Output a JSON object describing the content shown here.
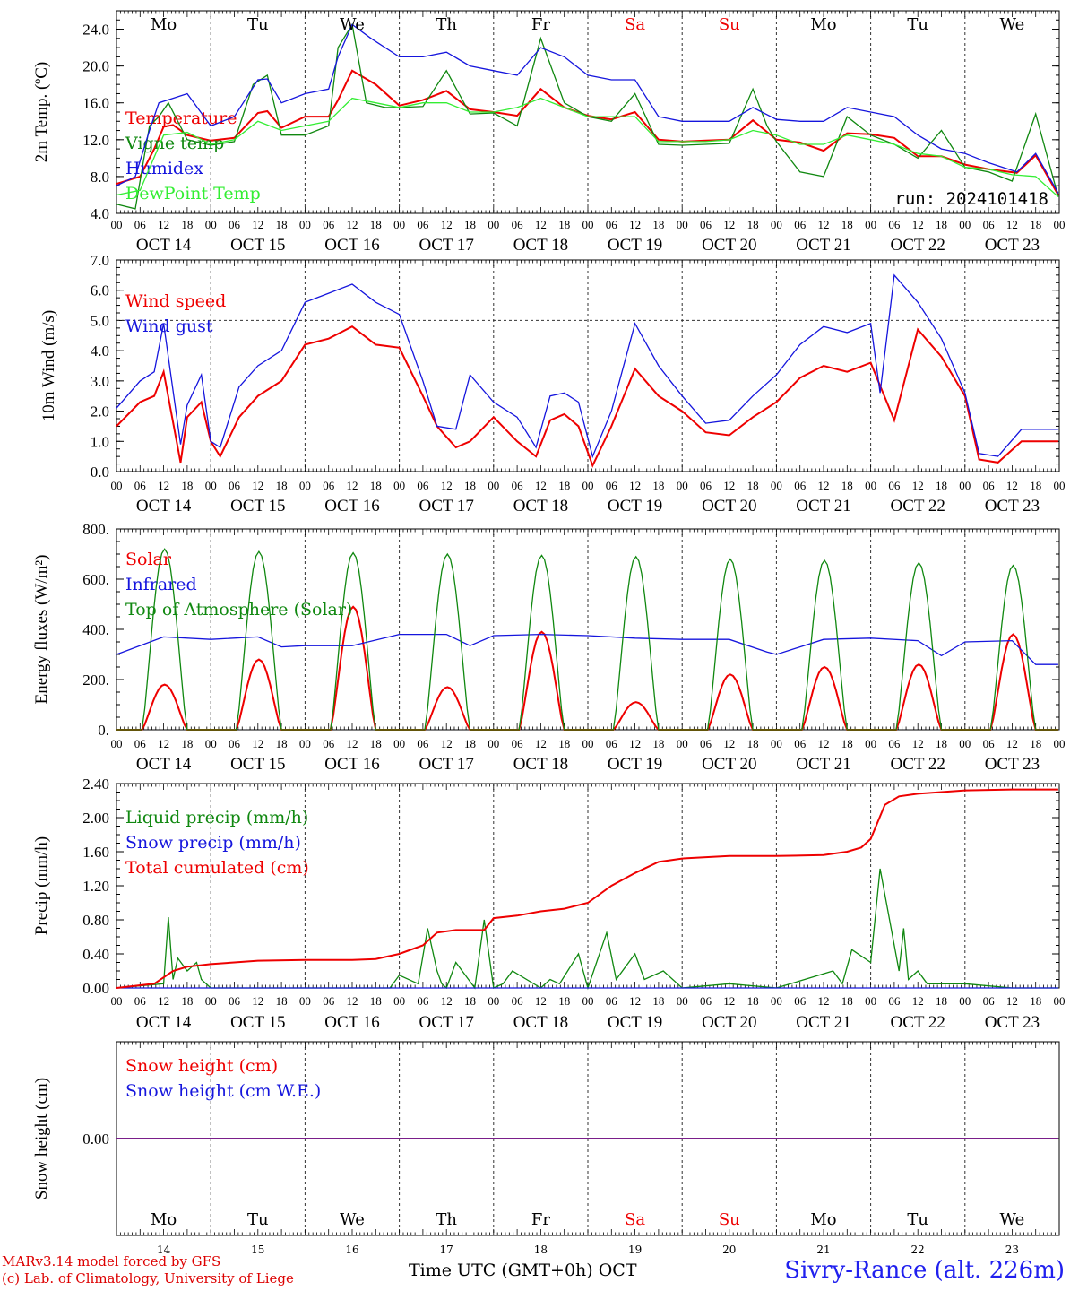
{
  "run_label": "run: 2024101418",
  "x_axis": {
    "hour_ticks": [
      "00",
      "06",
      "12",
      "18"
    ],
    "date_labels": [
      "OCT 14",
      "OCT 15",
      "OCT 16",
      "OCT 17",
      "OCT 18",
      "OCT 19",
      "OCT 20",
      "OCT 21",
      "OCT 22",
      "OCT 23"
    ],
    "weekday_labels": [
      "Mo",
      "Tu",
      "We",
      "Th",
      "Fr",
      "Sa",
      "Su",
      "Mo",
      "Tu",
      "We"
    ],
    "weekend_flags": [
      false,
      false,
      false,
      false,
      false,
      true,
      true,
      false,
      false,
      false
    ],
    "day_numbers": [
      "14",
      "15",
      "16",
      "17",
      "18",
      "19",
      "20",
      "21",
      "22",
      "23"
    ],
    "final_tick": "00",
    "range_days": [
      0,
      10
    ]
  },
  "colors": {
    "red": "#ee0000",
    "green": "#108810",
    "blue": "#1515dd",
    "lightgreen": "#33ee33",
    "purple": "#7a1f8a"
  },
  "chart_data": [
    {
      "id": "temp",
      "type": "line",
      "ylabel": "2m Temp. (ºC)",
      "ylim": [
        4.0,
        26.0
      ],
      "yticks": [
        "4.0",
        "8.0",
        "12.0",
        "16.0",
        "20.0",
        "24.0"
      ],
      "ytick_values": [
        4,
        8,
        12,
        16,
        20,
        24
      ],
      "x_unit": "days since OCT 14 00 UTC",
      "series": [
        {
          "name": "Temperature",
          "color": "red",
          "x": [
            0,
            0.25,
            0.4,
            0.5,
            0.6,
            0.75,
            1.0,
            1.25,
            1.5,
            1.6,
            1.75,
            2.0,
            2.25,
            2.35,
            2.5,
            2.75,
            3.0,
            3.25,
            3.5,
            3.75,
            4.0,
            4.25,
            4.5,
            4.75,
            5.0,
            5.25,
            5.5,
            5.75,
            6.0,
            6.25,
            6.5,
            6.75,
            7.0,
            7.25,
            7.5,
            7.75,
            8.0,
            8.25,
            8.5,
            8.75,
            9.0,
            9.25,
            9.55,
            9.75,
            9.99
          ],
          "y": [
            7.2,
            8.0,
            11.0,
            13.4,
            13.6,
            12.5,
            11.9,
            12.2,
            14.9,
            15.1,
            13.3,
            14.5,
            14.5,
            16.3,
            19.5,
            18.0,
            15.7,
            16.3,
            17.3,
            15.3,
            15.0,
            14.6,
            17.5,
            15.5,
            14.6,
            14.2,
            15.0,
            12.0,
            11.8,
            11.9,
            12.0,
            14.1,
            12.0,
            11.7,
            10.8,
            12.7,
            12.6,
            12.2,
            10.2,
            10.2,
            9.3,
            8.8,
            8.4,
            10.3,
            6.0
          ]
        },
        {
          "name": "Vigne temp",
          "color": "green",
          "x": [
            0,
            0.2,
            0.35,
            0.45,
            0.55,
            0.75,
            1.0,
            1.25,
            1.45,
            1.6,
            1.75,
            2.0,
            2.25,
            2.35,
            2.5,
            2.65,
            2.85,
            3.0,
            3.25,
            3.5,
            3.75,
            4.0,
            4.25,
            4.5,
            4.75,
            5.0,
            5.25,
            5.5,
            5.75,
            6.0,
            6.25,
            6.5,
            6.75,
            6.9,
            7.0,
            7.25,
            7.5,
            7.75,
            8.0,
            8.25,
            8.5,
            8.75,
            9.0,
            9.25,
            9.5,
            9.75,
            9.99
          ],
          "y": [
            5.0,
            4.5,
            13.5,
            14.5,
            16.0,
            12.0,
            11.4,
            11.8,
            18.0,
            19.0,
            12.5,
            12.5,
            13.5,
            22.0,
            24.5,
            16.0,
            15.5,
            15.5,
            15.6,
            19.5,
            14.8,
            14.9,
            13.5,
            23.0,
            16.0,
            14.5,
            14.0,
            17.0,
            11.5,
            11.4,
            11.5,
            11.6,
            17.5,
            13.5,
            11.8,
            8.5,
            8.0,
            14.5,
            12.5,
            11.5,
            10.0,
            13.0,
            9.0,
            8.5,
            7.5,
            14.8,
            5.8
          ]
        },
        {
          "name": "Humidex",
          "color": "blue",
          "x": [
            0,
            0.2,
            0.35,
            0.45,
            0.6,
            0.75,
            1.0,
            1.25,
            1.5,
            1.6,
            1.75,
            2.0,
            2.25,
            2.35,
            2.5,
            2.7,
            3.0,
            3.25,
            3.5,
            3.75,
            4.0,
            4.25,
            4.5,
            4.75,
            5.0,
            5.25,
            5.5,
            5.75,
            6.0,
            6.25,
            6.5,
            6.75,
            7.0,
            7.25,
            7.5,
            7.75,
            8.0,
            8.25,
            8.5,
            8.75,
            9.0,
            9.25,
            9.55,
            9.75,
            9.99
          ],
          "y": [
            7.0,
            8.0,
            13.0,
            16.0,
            16.5,
            17.0,
            13.5,
            14.5,
            18.5,
            18.6,
            16.0,
            17.0,
            17.5,
            21.0,
            24.5,
            23.0,
            21.0,
            21.0,
            21.5,
            20.0,
            19.5,
            19.0,
            22.0,
            21.0,
            19.0,
            18.5,
            18.5,
            14.5,
            14.0,
            14.0,
            14.0,
            15.5,
            14.2,
            14.0,
            14.0,
            15.5,
            15.0,
            14.5,
            12.5,
            11.0,
            10.5,
            9.5,
            8.5,
            10.5,
            6.2
          ]
        },
        {
          "name": "DewPoint Temp",
          "color": "lightgreen",
          "x": [
            0,
            0.25,
            0.5,
            0.75,
            1.0,
            1.25,
            1.5,
            1.75,
            2.0,
            2.25,
            2.5,
            2.75,
            3.0,
            3.25,
            3.5,
            3.75,
            4.0,
            4.25,
            4.5,
            4.75,
            5.0,
            5.25,
            5.5,
            5.75,
            6.0,
            6.25,
            6.5,
            6.75,
            7.0,
            7.25,
            7.5,
            7.75,
            8.0,
            8.25,
            8.5,
            8.75,
            9.0,
            9.25,
            9.5,
            9.75,
            9.99
          ],
          "y": [
            6.0,
            6.5,
            12.5,
            12.8,
            11.5,
            12.0,
            14.0,
            13.0,
            13.5,
            14.0,
            16.5,
            16.0,
            15.5,
            16.0,
            16.0,
            15.0,
            15.0,
            15.5,
            16.5,
            15.5,
            14.5,
            14.5,
            14.5,
            11.8,
            11.8,
            11.8,
            12.0,
            13.0,
            12.5,
            11.5,
            11.5,
            12.5,
            12.0,
            11.5,
            10.5,
            10.2,
            9.0,
            8.8,
            8.2,
            8.0,
            5.8
          ]
        }
      ]
    },
    {
      "id": "wind",
      "type": "line",
      "ylabel": "10m Wind (m/s)",
      "ylim": [
        0.0,
        7.0
      ],
      "yticks": [
        "0.0",
        "1.0",
        "2.0",
        "3.0",
        "4.0",
        "5.0",
        "6.0",
        "7.0"
      ],
      "ytick_values": [
        0,
        1,
        2,
        3,
        4,
        5,
        6,
        7
      ],
      "ref_line": 5.0,
      "x_unit": "days since OCT 14 00 UTC",
      "series": [
        {
          "name": "Wind speed",
          "color": "red",
          "x": [
            0,
            0.25,
            0.4,
            0.5,
            0.68,
            0.75,
            0.9,
            1.0,
            1.1,
            1.3,
            1.5,
            1.75,
            2.0,
            2.25,
            2.5,
            2.75,
            3.0,
            3.25,
            3.4,
            3.6,
            3.75,
            4.0,
            4.25,
            4.45,
            4.6,
            4.75,
            4.9,
            5.05,
            5.25,
            5.5,
            5.75,
            6.0,
            6.25,
            6.5,
            6.75,
            7.0,
            7.25,
            7.5,
            7.75,
            8.0,
            8.25,
            8.5,
            8.75,
            9.0,
            9.15,
            9.35,
            9.6,
            9.99
          ],
          "y": [
            1.5,
            2.3,
            2.5,
            3.3,
            0.3,
            1.8,
            2.3,
            1.0,
            0.5,
            1.8,
            2.5,
            3.0,
            4.2,
            4.4,
            4.8,
            4.2,
            4.1,
            2.5,
            1.5,
            0.8,
            1.0,
            1.8,
            1.0,
            0.5,
            1.7,
            1.9,
            1.5,
            0.2,
            1.5,
            3.4,
            2.5,
            2.0,
            1.3,
            1.2,
            1.8,
            2.3,
            3.1,
            3.5,
            3.3,
            3.6,
            1.7,
            4.7,
            3.8,
            2.5,
            0.4,
            0.3,
            1.0,
            1.0
          ]
        },
        {
          "name": "Wind gust",
          "color": "blue",
          "x": [
            0,
            0.25,
            0.4,
            0.5,
            0.68,
            0.75,
            0.9,
            1.0,
            1.1,
            1.3,
            1.5,
            1.75,
            2.0,
            2.25,
            2.5,
            2.75,
            3.0,
            3.25,
            3.4,
            3.6,
            3.75,
            4.0,
            4.25,
            4.45,
            4.6,
            4.75,
            4.9,
            5.05,
            5.25,
            5.5,
            5.75,
            6.0,
            6.25,
            6.5,
            6.75,
            7.0,
            7.25,
            7.5,
            7.75,
            8.0,
            8.1,
            8.25,
            8.5,
            8.75,
            9.0,
            9.15,
            9.35,
            9.6,
            9.99
          ],
          "y": [
            2.1,
            3.0,
            3.3,
            4.9,
            0.9,
            2.2,
            3.2,
            1.0,
            0.8,
            2.8,
            3.5,
            4.0,
            5.6,
            5.9,
            6.2,
            5.6,
            5.2,
            3.0,
            1.5,
            1.4,
            3.2,
            2.3,
            1.8,
            0.8,
            2.5,
            2.6,
            2.3,
            0.5,
            2.0,
            4.9,
            3.5,
            2.5,
            1.6,
            1.7,
            2.5,
            3.2,
            4.2,
            4.8,
            4.6,
            4.9,
            2.6,
            6.5,
            5.6,
            4.4,
            2.6,
            0.6,
            0.5,
            1.4,
            1.4
          ]
        }
      ]
    },
    {
      "id": "flux",
      "type": "line",
      "ylabel": "Energy fluxes (W/m²)",
      "ylim": [
        0,
        800
      ],
      "yticks": [
        "0.",
        "200.",
        "400.",
        "600.",
        "800."
      ],
      "ytick_values": [
        0,
        200,
        400,
        600,
        800
      ],
      "x_unit": "days since OCT 14 00 UTC",
      "series": [
        {
          "name": "Solar",
          "color": "red",
          "diurnal": true,
          "day_peaks": [
            180,
            280,
            490,
            170,
            390,
            110,
            220,
            250,
            260,
            380
          ]
        },
        {
          "name": "Infrared",
          "color": "blue",
          "x": [
            0,
            0.5,
            1.0,
            1.5,
            1.75,
            2.0,
            2.5,
            3.0,
            3.5,
            3.75,
            4.0,
            4.5,
            5.0,
            5.5,
            6.0,
            6.5,
            6.9,
            7.0,
            7.5,
            8.0,
            8.5,
            8.75,
            9.0,
            9.5,
            9.75,
            9.99
          ],
          "y": [
            300,
            370,
            360,
            370,
            330,
            335,
            335,
            380,
            380,
            335,
            375,
            380,
            375,
            365,
            360,
            360,
            310,
            300,
            360,
            365,
            355,
            295,
            350,
            355,
            260,
            260
          ]
        },
        {
          "name": "Top of Atmosphere (Solar)",
          "color": "green",
          "diurnal": true,
          "day_peaks": [
            720,
            710,
            705,
            700,
            695,
            690,
            680,
            675,
            665,
            655
          ]
        }
      ]
    },
    {
      "id": "precip",
      "type": "line",
      "ylabel": "Precip (mm/h)",
      "ylim": [
        0.0,
        2.4
      ],
      "yticks": [
        "0.00",
        "0.40",
        "0.80",
        "1.20",
        "1.60",
        "2.00",
        "2.40"
      ],
      "ytick_values": [
        0,
        0.4,
        0.8,
        1.2,
        1.6,
        2.0,
        2.4
      ],
      "x_unit": "days since OCT 14 00 UTC",
      "series": [
        {
          "name": "Liquid precip (mm/h)",
          "color": "green",
          "x": [
            0,
            0.5,
            0.55,
            0.6,
            0.65,
            0.75,
            0.85,
            0.9,
            1.0,
            1.5,
            2.9,
            3.0,
            3.2,
            3.3,
            3.4,
            3.45,
            3.5,
            3.6,
            3.8,
            3.9,
            4.0,
            4.1,
            4.2,
            4.5,
            4.6,
            4.7,
            4.9,
            5.0,
            5.2,
            5.3,
            5.5,
            5.6,
            5.8,
            6.0,
            6.5,
            7.0,
            7.6,
            7.7,
            7.8,
            8.0,
            8.1,
            8.3,
            8.35,
            8.4,
            8.5,
            8.6,
            9.0,
            9.5,
            9.99
          ],
          "y": [
            0,
            0.05,
            0.83,
            0.1,
            0.35,
            0.2,
            0.3,
            0.1,
            0,
            0,
            0,
            0.15,
            0.05,
            0.7,
            0.2,
            0.05,
            0,
            0.3,
            0,
            0.8,
            0,
            0.05,
            0.2,
            0,
            0.1,
            0.05,
            0.4,
            0,
            0.65,
            0.1,
            0.4,
            0.1,
            0.2,
            0,
            0.05,
            0,
            0.2,
            0.05,
            0.45,
            0.3,
            1.4,
            0.2,
            0.7,
            0.1,
            0.2,
            0.05,
            0.05,
            0,
            0
          ]
        },
        {
          "name": "Snow precip (mm/h)",
          "color": "blue",
          "x": [
            0,
            9.99
          ],
          "y": [
            0,
            0
          ]
        },
        {
          "name": "Total cumulated (cm)",
          "color": "red",
          "x": [
            0,
            0.4,
            0.6,
            0.75,
            1.0,
            1.25,
            1.5,
            2.0,
            2.5,
            2.75,
            3.0,
            3.25,
            3.4,
            3.6,
            3.9,
            4.0,
            4.25,
            4.5,
            4.75,
            5.0,
            5.25,
            5.5,
            5.75,
            6.0,
            6.5,
            7.0,
            7.5,
            7.75,
            7.9,
            8.0,
            8.15,
            8.3,
            8.5,
            9.0,
            9.5,
            9.99
          ],
          "y": [
            0,
            0.05,
            0.2,
            0.25,
            0.28,
            0.3,
            0.32,
            0.33,
            0.33,
            0.34,
            0.4,
            0.5,
            0.65,
            0.68,
            0.68,
            0.82,
            0.85,
            0.9,
            0.93,
            1.0,
            1.2,
            1.35,
            1.48,
            1.52,
            1.55,
            1.55,
            1.56,
            1.6,
            1.65,
            1.75,
            2.15,
            2.25,
            2.28,
            2.32,
            2.33,
            2.33
          ]
        }
      ]
    },
    {
      "id": "snow",
      "type": "line",
      "ylabel": "Snow height (cm)",
      "ylim": [
        -1,
        1
      ],
      "yticks": [
        "0.00"
      ],
      "ytick_values": [
        0
      ],
      "x_unit": "days since OCT 14 00 UTC",
      "series": [
        {
          "name": "Snow height (cm)",
          "color": "red",
          "x": [
            0,
            9.99
          ],
          "y": [
            0,
            0
          ]
        },
        {
          "name": "Snow height (cm W.E.)",
          "color": "blue",
          "x": [
            0,
            9.99
          ],
          "y": [
            0,
            0
          ]
        }
      ]
    }
  ],
  "footer": {
    "credit_line1": "MARv3.14 model forced by GFS",
    "credit_line2": "(c) Lab. of Climatology, University of Liege",
    "axis_title": "Time UTC (GMT+0h) OCT",
    "station": "Sivry-Rance (alt. 226m)"
  }
}
